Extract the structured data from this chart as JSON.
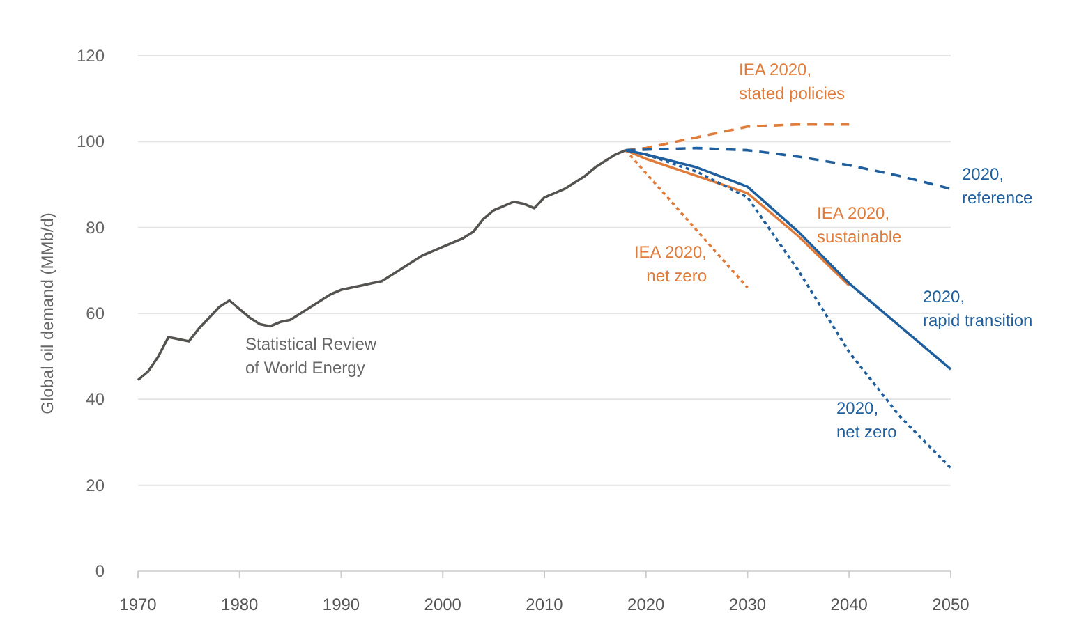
{
  "chart_data": {
    "type": "line",
    "ylabel": "Global oil demand (MMb/d)",
    "xlim": [
      1970,
      2050
    ],
    "xticks": [
      1970,
      1980,
      1990,
      2000,
      2010,
      2020,
      2030,
      2040,
      2050
    ],
    "ylim": [
      0,
      120
    ],
    "yticks": [
      0,
      20,
      40,
      60,
      80,
      100,
      120
    ],
    "grid": "y",
    "marker": "none",
    "series": [
      {
        "name": "Statistical Review of World Energy",
        "color": "#55534f",
        "line_style": "solid",
        "x": [
          1970,
          1971,
          1972,
          1973,
          1974,
          1975,
          1976,
          1977,
          1978,
          1979,
          1980,
          1981,
          1982,
          1983,
          1984,
          1985,
          1986,
          1987,
          1988,
          1989,
          1990,
          1991,
          1992,
          1993,
          1994,
          1995,
          1996,
          1997,
          1998,
          1999,
          2000,
          2001,
          2002,
          2003,
          2004,
          2005,
          2006,
          2007,
          2008,
          2009,
          2010,
          2011,
          2012,
          2013,
          2014,
          2015,
          2016,
          2017,
          2018
        ],
        "values": [
          44.5,
          46.5,
          50,
          54.5,
          54,
          53.5,
          56.5,
          59,
          61.5,
          63,
          61,
          59,
          57.5,
          57,
          58,
          58.5,
          60,
          61.5,
          63,
          64.5,
          65.5,
          66,
          66.5,
          67,
          67.5,
          69,
          70.5,
          72,
          73.5,
          74.5,
          75.5,
          76.5,
          77.5,
          79,
          82,
          84,
          85,
          86,
          85.5,
          84.5,
          87,
          88,
          89,
          90.5,
          92,
          94,
          95.5,
          97,
          98
        ]
      },
      {
        "name": "IEA 2020, stated policies",
        "color": "#e07b39",
        "line_style": "dashed",
        "x": [
          2018,
          2020,
          2025,
          2030,
          2035,
          2040
        ],
        "values": [
          98,
          98.5,
          101,
          103.5,
          104,
          104
        ]
      },
      {
        "name": "2020, reference",
        "color": "#1f5f9e",
        "line_style": "dashed",
        "x": [
          2018,
          2025,
          2030,
          2035,
          2040,
          2045,
          2050
        ],
        "values": [
          98,
          98.5,
          98,
          96.5,
          94.5,
          92,
          89
        ]
      },
      {
        "name": "IEA 2020, sustainable",
        "color": "#e07b39",
        "line_style": "solid",
        "x": [
          2018,
          2020,
          2025,
          2030,
          2035,
          2040
        ],
        "values": [
          98,
          96,
          92,
          88,
          78,
          66.5
        ]
      },
      {
        "name": "IEA 2020, net zero",
        "color": "#e07b39",
        "line_style": "dotted",
        "x": [
          2018,
          2030
        ],
        "values": [
          98,
          66
        ]
      },
      {
        "name": "2020, rapid transition",
        "color": "#1f5f9e",
        "line_style": "solid",
        "x": [
          2018,
          2020,
          2025,
          2030,
          2035,
          2040,
          2045,
          2050
        ],
        "values": [
          98,
          97,
          94,
          89.5,
          79,
          67,
          57,
          47
        ]
      },
      {
        "name": "2020, net zero",
        "color": "#1f5f9e",
        "line_style": "dotted",
        "x": [
          2018,
          2020,
          2025,
          2030,
          2035,
          2040,
          2045,
          2050
        ],
        "values": [
          98,
          97,
          93,
          87,
          70,
          51,
          36,
          24
        ]
      }
    ]
  }
}
